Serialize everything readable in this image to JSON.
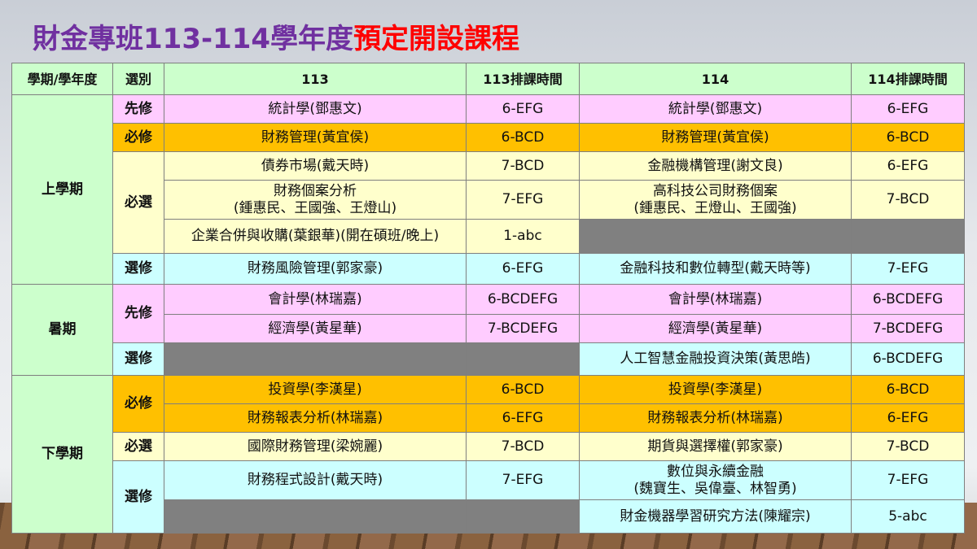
{
  "title": {
    "part1": "財金專班113-114學年度",
    "part2": "預定開設課程"
  },
  "colors": {
    "title_purple": "#7030a0",
    "title_red": "#ff0000",
    "header_green": "#ccffcc",
    "pink": "#ffccff",
    "orange": "#ffc000",
    "yellow": "#ffffcc",
    "cyan": "#ccffff",
    "unavailable_gray": "#808080"
  },
  "headers": [
    "學期/學年度",
    "選別",
    "113",
    "113排課時間",
    "114",
    "114排課時間"
  ],
  "semesters": [
    {
      "name": "上學期",
      "groups": [
        {
          "category": "先修",
          "color": "pink",
          "rows": [
            {
              "c113": "統計學(鄧惠文)",
              "t113": "6-EFG",
              "c114": "統計學(鄧惠文)",
              "t114": "6-EFG",
              "h": 35
            }
          ]
        },
        {
          "category": "必修",
          "color": "orange",
          "rows": [
            {
              "c113": "財務管理(黃宜侯)",
              "t113": "6-BCD",
              "c114": "財務管理(黃宜侯)",
              "t114": "6-BCD",
              "h": 35
            }
          ]
        },
        {
          "category": "必選",
          "color": "yellow",
          "rows": [
            {
              "c113": "債券市場(戴天時)",
              "t113": "7-BCD",
              "c114": "金融機構管理(謝文良)",
              "t114": "6-EFG",
              "h": 35
            },
            {
              "c113": "財務個案分析\n(鍾惠民、王國強、王燈山)",
              "t113": "7-EFG",
              "c114": "高科技公司財務個案\n(鍾惠民、王燈山、王國強)",
              "t114": "7-BCD",
              "h": 48
            },
            {
              "c113": "企業合併與收購(葉銀華)(開在碩班/晚上)",
              "t113": "1-abc",
              "c114": null,
              "t114": null,
              "h": 42
            }
          ]
        },
        {
          "category": "選修",
          "color": "cyan",
          "rows": [
            {
              "c113": "財務風險管理(郭家豪)",
              "t113": "6-EFG",
              "c114": "金融科技和數位轉型(戴天時等)",
              "t114": "7-EFG",
              "h": 38
            }
          ]
        }
      ]
    },
    {
      "name": "暑期",
      "groups": [
        {
          "category": "先修",
          "color": "pink",
          "rows": [
            {
              "c113": "會計學(林瑞嘉)",
              "t113": "6-BCDEFG",
              "c114": "會計學(林瑞嘉)",
              "t114": "6-BCDEFG",
              "h": 37
            },
            {
              "c113": "經濟學(黃星華)",
              "t113": "7-BCDEFG",
              "c114": "經濟學(黃星華)",
              "t114": "7-BCDEFG",
              "h": 35
            }
          ]
        },
        {
          "category": "選修",
          "color": "cyan",
          "rows": [
            {
              "c113": null,
              "t113": null,
              "c114": "人工智慧金融投資決策(黃思皓)",
              "t114": "6-BCDEFG",
              "h": 40
            }
          ]
        }
      ]
    },
    {
      "name": "下學期",
      "groups": [
        {
          "category": "必修",
          "color": "orange",
          "rows": [
            {
              "c113": "投資學(李漢星)",
              "t113": "6-BCD",
              "c114": "投資學(李漢星)",
              "t114": "6-BCD",
              "h": 35
            },
            {
              "c113": "財務報表分析(林瑞嘉)",
              "t113": "6-EFG",
              "c114": "財務報表分析(林瑞嘉)",
              "t114": "6-EFG",
              "h": 35
            }
          ]
        },
        {
          "category": "必選",
          "color": "yellow",
          "rows": [
            {
              "c113": "國際財務管理(梁婉麗)",
              "t113": "7-BCD",
              "c114": "期貨與選擇權(郭家豪)",
              "t114": "7-BCD",
              "h": 35
            }
          ]
        },
        {
          "category": "選修",
          "color": "cyan",
          "rows": [
            {
              "c113": "財務程式設計(戴天時)",
              "t113": "7-EFG",
              "c114": "數位與永續金融\n(魏寶生、吳偉臺、林智勇)",
              "t114": "7-EFG",
              "h": 48
            },
            {
              "c113": null,
              "t113": null,
              "c114": "財金機器學習研究方法(陳耀宗)",
              "t114": "5-abc",
              "h": 41
            }
          ]
        }
      ]
    }
  ]
}
